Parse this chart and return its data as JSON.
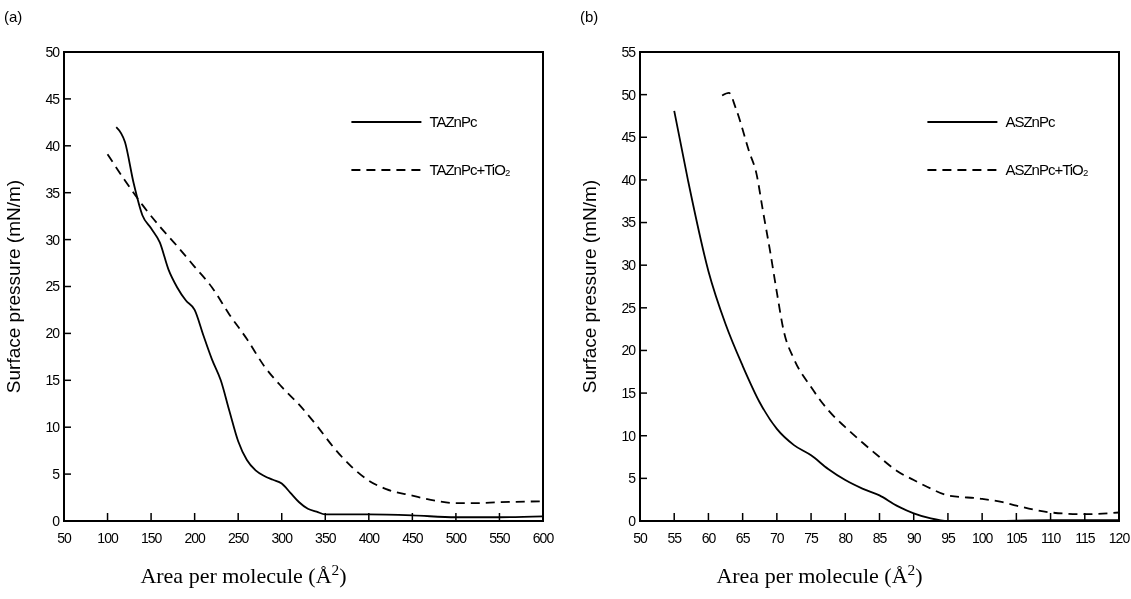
{
  "chart_data": [
    {
      "type": "line",
      "title": "(a)",
      "xlabel": "Area per molecule (Å$^{2}$)",
      "ylabel": "Surface pressure (mN/m)",
      "xlim": [
        50,
        600
      ],
      "xticks": [
        50,
        100,
        150,
        200,
        250,
        300,
        350,
        400,
        450,
        500,
        550,
        600
      ],
      "ylim": [
        0,
        50
      ],
      "yticks": [
        0,
        5,
        10,
        15,
        20,
        25,
        30,
        35,
        40,
        45,
        50
      ],
      "grid": false,
      "legend": "top right",
      "series": [
        {
          "name": "TAZnPc",
          "color": "#000000",
          "line_style": "solid",
          "x": [
            110,
            120,
            130,
            140,
            150,
            160,
            170,
            180,
            190,
            200,
            210,
            220,
            230,
            240,
            250,
            260,
            270,
            280,
            290,
            300,
            310,
            320,
            330,
            340,
            350,
            400,
            450,
            500,
            550,
            600
          ],
          "values": [
            42,
            40.4,
            36,
            32.6,
            31.2,
            29.7,
            26.8,
            24.9,
            23.5,
            22.5,
            19.8,
            17.2,
            15,
            11.7,
            8.5,
            6.5,
            5.4,
            4.8,
            4.4,
            4,
            3,
            2,
            1.3,
            1,
            0.7,
            0.7,
            0.6,
            0.4,
            0.4,
            0.5
          ]
        },
        {
          "name": "TAZnPc+TiO₂",
          "color": "#000000",
          "line_style": "dashed",
          "x": [
            100,
            120,
            140,
            160,
            180,
            200,
            220,
            240,
            260,
            280,
            300,
            320,
            340,
            360,
            380,
            400,
            420,
            450,
            480,
            500,
            520,
            550,
            600
          ],
          "values": [
            39.1,
            36.3,
            33.7,
            31.4,
            29.3,
            27.1,
            24.9,
            22,
            19.4,
            16.5,
            14.3,
            12.4,
            10.2,
            7.8,
            5.8,
            4.3,
            3.4,
            2.7,
            2.1,
            1.9,
            1.9,
            2,
            2.1
          ]
        }
      ]
    },
    {
      "type": "line",
      "title": "(b)",
      "xlabel": "Area per molecule (Å$^{2}$)",
      "ylabel": "Surface pressure (mN/m)",
      "xlim": [
        50,
        120
      ],
      "xticks": [
        50,
        55,
        60,
        65,
        70,
        75,
        80,
        85,
        90,
        95,
        100,
        105,
        110,
        115,
        120
      ],
      "ylim": [
        0,
        55
      ],
      "yticks": [
        0,
        5,
        10,
        15,
        20,
        25,
        30,
        35,
        40,
        45,
        50,
        55
      ],
      "grid": false,
      "legend": "top right",
      "series": [
        {
          "name": "ASZnPc",
          "color": "#000000",
          "line_style": "solid",
          "x": [
            55,
            57,
            60,
            62.5,
            65,
            67.5,
            70,
            72.5,
            75,
            77.5,
            80,
            82.5,
            85,
            87.5,
            90,
            92.5,
            95,
            100,
            110,
            120
          ],
          "values": [
            48.1,
            40,
            29.3,
            23.1,
            18.2,
            13.9,
            10.8,
            8.9,
            7.7,
            6.1,
            4.8,
            3.8,
            3,
            1.8,
            0.9,
            0.3,
            0,
            0,
            0.1,
            0.1
          ]
        },
        {
          "name": "ASZnPc+TiO₂",
          "color": "#000000",
          "line_style": "dashed",
          "x": [
            62,
            63,
            64,
            66,
            67,
            68,
            69,
            70,
            71,
            72.5,
            75,
            77.5,
            80,
            82.5,
            85,
            87.5,
            90,
            92.5,
            95,
            100,
            103,
            105,
            110,
            115,
            120
          ],
          "values": [
            49.9,
            50.2,
            48.4,
            43.2,
            40.8,
            36.2,
            31.7,
            26.8,
            22.3,
            19,
            15.7,
            13,
            11,
            9.2,
            7.5,
            5.9,
            4.8,
            3.8,
            3,
            2.6,
            2.2,
            1.8,
            1,
            0.8,
            1
          ]
        }
      ]
    }
  ]
}
